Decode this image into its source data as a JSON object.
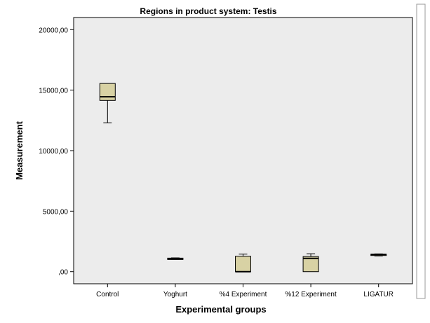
{
  "chart_data": {
    "type": "box",
    "title": "Regions in product system: Testis",
    "xlabel": "Experimental groups",
    "ylabel": "Measurement",
    "ylim": [
      -1000,
      21000
    ],
    "yticks": [
      0,
      5000,
      10000,
      15000,
      20000
    ],
    "ytick_labels": [
      ",00",
      "5000,00",
      "10000,00",
      "15000,00",
      "20000,00"
    ],
    "categories": [
      "Control",
      "Yoghurt",
      "%4 Experiment",
      "%12 Experiment",
      "LIGATUR"
    ],
    "boxes": [
      {
        "category": "Control",
        "min": 12300,
        "q1": 14150,
        "median": 14450,
        "q3": 15550,
        "max": 15550
      },
      {
        "category": "Yoghurt",
        "min": 1020,
        "q1": 1050,
        "median": 1080,
        "q3": 1120,
        "max": 1140
      },
      {
        "category": "%4 Experiment",
        "min": 0,
        "q1": 0,
        "median": 0,
        "q3": 1270,
        "max": 1450
      },
      {
        "category": "%12 Experiment",
        "min": 0,
        "q1": 0,
        "median": 1100,
        "q3": 1250,
        "max": 1480
      },
      {
        "category": "LIGATUR",
        "min": 1300,
        "q1": 1370,
        "median": 1420,
        "q3": 1450,
        "max": 1470
      }
    ],
    "colors": {
      "box_fill": "#d8d2a4",
      "plot_background": "#ececec",
      "outline": "#000000"
    },
    "grid": false,
    "legend": "none"
  }
}
